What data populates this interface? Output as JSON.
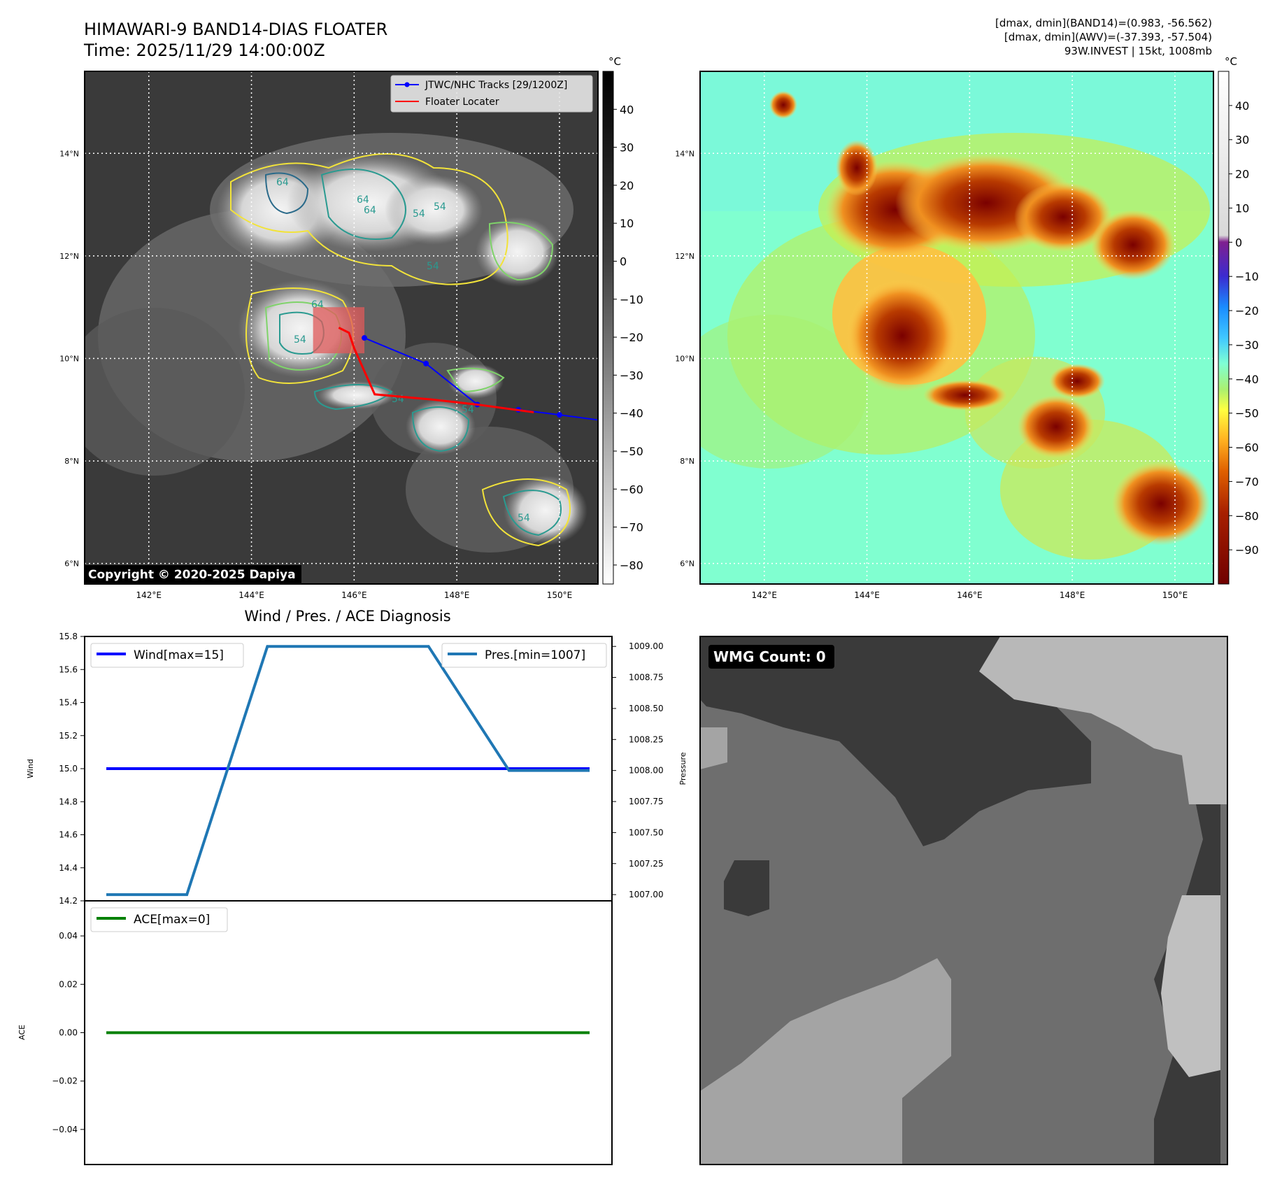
{
  "header": {
    "title_line1": "HIMAWARI-9 BAND14-DIAS FLOATER",
    "title_line2": "Time: 2025/11/29 14:00:00Z",
    "info_line1": "[dmax, dmin](BAND14)=(0.983, -56.562)",
    "info_line2": "[dmax, dmin](AWV)=(-37.393, -57.504)",
    "info_line3": "93W.INVEST | 15kt, 1008mb"
  },
  "copyright": "Copyright © 2020-2025 Dapiya",
  "map_axes": {
    "lon_ticks": [
      "142°E",
      "144°E",
      "146°E",
      "148°E",
      "150°E"
    ],
    "lat_ticks": [
      "14°N",
      "12°N",
      "10°N",
      "8°N",
      "6°N"
    ],
    "lon_range": [
      140.75,
      150.75
    ],
    "lat_range": [
      5.6,
      15.6
    ]
  },
  "colorbar_left": {
    "unit": "°C",
    "ticks": [
      "40",
      "30",
      "20",
      "10",
      "0",
      "−10",
      "−20",
      "−30",
      "−40",
      "−50",
      "−60",
      "−70",
      "−80"
    ],
    "range": [
      -85,
      50
    ]
  },
  "colorbar_right": {
    "unit": "°C",
    "ticks": [
      "40",
      "30",
      "20",
      "10",
      "0",
      "−10",
      "−20",
      "−30",
      "−40",
      "−50",
      "−60",
      "−70",
      "−80",
      "−90"
    ],
    "range": [
      -100,
      50
    ]
  },
  "legend_map": {
    "track_label": "JTWC/NHC Tracks [29/1200Z]",
    "floater_label": "Floater Locater"
  },
  "contour_labels": [
    "64",
    "64",
    "54",
    "64",
    "54",
    "64",
    "54",
    "54",
    "54",
    "54",
    "54"
  ],
  "chart_data": [
    {
      "type": "line",
      "title": "Wind / Pres. / ACE Diagnosis",
      "ylabel": "Wind",
      "y2label": "Pressure",
      "ylim": [
        14.2,
        15.8
      ],
      "y2lim": [
        1006.95,
        1009.08
      ],
      "yticks": [
        "15.8",
        "15.6",
        "15.4",
        "15.2",
        "15.0",
        "14.8",
        "14.6",
        "14.4",
        "14.2"
      ],
      "y2ticks": [
        "1009.00",
        "1008.75",
        "1008.50",
        "1008.25",
        "1008.00",
        "1007.75",
        "1007.50",
        "1007.25",
        "1007.00"
      ],
      "x": [
        0,
        1,
        2,
        3,
        4,
        5,
        6
      ],
      "series": [
        {
          "name": "Wind[max=15]",
          "axis": "left",
          "color": "#0000ff",
          "values": [
            15,
            15,
            15,
            15,
            15,
            15,
            15
          ]
        },
        {
          "name": "Pres.[min=1007]",
          "axis": "right",
          "color": "#1f77b4",
          "values": [
            1007,
            1007,
            1009,
            1009,
            1009,
            1008,
            1008
          ]
        }
      ]
    },
    {
      "type": "line",
      "ylabel": "ACE",
      "ylim": [
        -0.0545,
        0.0545
      ],
      "yticks": [
        "0.04",
        "0.02",
        "0.00",
        "−0.02",
        "−0.04"
      ],
      "x": [
        0,
        1,
        2,
        3,
        4,
        5,
        6
      ],
      "series": [
        {
          "name": "ACE[max=0]",
          "color": "#008000",
          "values": [
            0,
            0,
            0,
            0,
            0,
            0,
            0
          ]
        }
      ]
    }
  ],
  "wmg": {
    "label": "WMG Count: 0"
  },
  "tracks": {
    "jtwc": [
      [
        146.2,
        10.4
      ],
      [
        147.4,
        9.9
      ],
      [
        148.4,
        9.1
      ],
      [
        149.2,
        9.0
      ],
      [
        150.0,
        8.9
      ],
      [
        150.75,
        8.8
      ]
    ],
    "floater": [
      [
        145.7,
        10.6
      ],
      [
        145.9,
        10.5
      ],
      [
        146.0,
        10.2
      ],
      [
        146.4,
        9.3
      ],
      [
        147.5,
        9.2
      ],
      [
        148.4,
        9.1
      ],
      [
        149.5,
        8.95
      ]
    ],
    "floater_box": [
      [
        145.2,
        11.0
      ],
      [
        146.2,
        10.1
      ]
    ]
  }
}
